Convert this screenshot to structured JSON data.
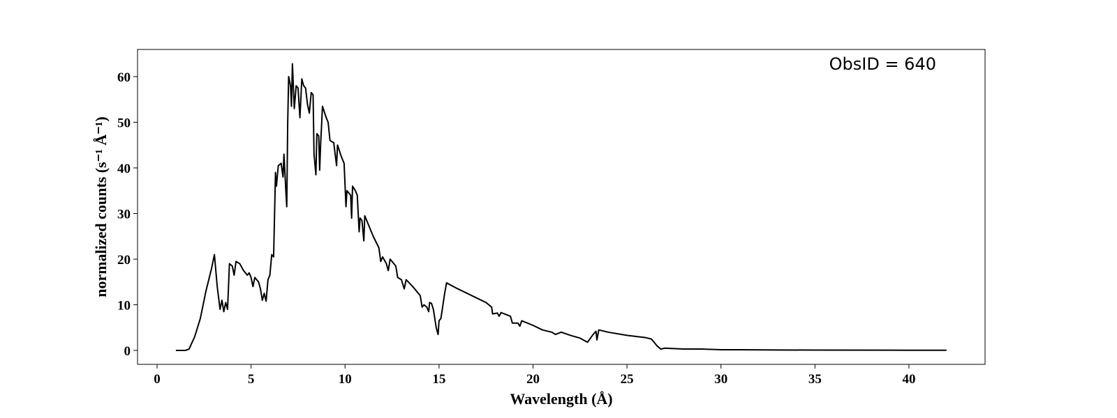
{
  "chart_data": {
    "type": "line",
    "xlabel": "Wavelength (Å)",
    "ylabel": "normalized counts (s⁻¹ Å⁻¹)",
    "annotation": "ObsID = 640",
    "xlim": [
      -1.04,
      44.05
    ],
    "ylim": [
      -3.05,
      65.95
    ],
    "xticks": [
      0,
      5,
      10,
      15,
      20,
      25,
      30,
      35,
      40
    ],
    "yticks": [
      0,
      10,
      20,
      30,
      40,
      50,
      60
    ],
    "x": [
      1.0,
      1.5,
      1.7,
      2.0,
      2.3,
      2.6,
      2.9,
      3.05,
      3.2,
      3.35,
      3.45,
      3.55,
      3.65,
      3.75,
      3.85,
      4.0,
      4.1,
      4.2,
      4.4,
      4.6,
      4.8,
      4.9,
      5.0,
      5.1,
      5.2,
      5.4,
      5.5,
      5.6,
      5.7,
      5.8,
      5.9,
      6.0,
      6.1,
      6.2,
      6.3,
      6.35,
      6.45,
      6.6,
      6.7,
      6.75,
      6.85,
      6.9,
      6.95,
      7.0,
      7.1,
      7.15,
      7.2,
      7.3,
      7.4,
      7.5,
      7.6,
      7.7,
      7.8,
      7.9,
      8.0,
      8.1,
      8.2,
      8.3,
      8.35,
      8.45,
      8.5,
      8.6,
      8.65,
      8.7,
      8.8,
      9.0,
      9.1,
      9.2,
      9.4,
      9.55,
      9.6,
      9.8,
      9.95,
      10.05,
      10.1,
      10.3,
      10.35,
      10.4,
      10.55,
      10.65,
      10.75,
      10.8,
      10.9,
      11.0,
      11.05,
      11.2,
      11.5,
      11.8,
      11.9,
      12.0,
      12.2,
      12.3,
      12.4,
      12.7,
      12.8,
      13.0,
      13.15,
      13.25,
      13.6,
      14.0,
      14.1,
      14.2,
      14.35,
      14.45,
      14.5,
      14.6,
      14.7,
      14.85,
      14.95,
      15.0,
      15.1,
      15.3,
      15.4,
      16.0,
      17.0,
      17.5,
      17.8,
      17.85,
      18.1,
      18.2,
      18.3,
      18.8,
      18.9,
      19.2,
      19.3,
      19.4,
      20.0,
      20.5,
      21.0,
      21.2,
      21.5,
      22.0,
      22.5,
      22.9,
      23.2,
      23.35,
      23.4,
      23.5,
      24.0,
      25.0,
      26.0,
      26.3,
      26.6,
      26.8,
      27.0,
      27.5,
      28,
      29,
      30,
      31,
      33,
      35,
      40,
      42
    ],
    "series": [
      {
        "color": "#000000",
        "values": [
          0,
          0,
          0.3,
          3,
          7,
          13,
          18,
          21,
          14,
          9,
          11,
          8.5,
          10.5,
          9,
          19,
          18.5,
          16.5,
          19.5,
          19,
          17.5,
          16.5,
          17,
          16,
          14,
          16,
          15,
          13.5,
          11,
          12.5,
          10.8,
          15.5,
          16.5,
          21,
          20.5,
          39,
          36,
          40.5,
          41,
          38,
          43,
          35,
          31.5,
          50,
          60,
          58,
          53.5,
          62.8,
          53,
          58,
          57.5,
          51,
          59.5,
          58,
          57.5,
          54,
          52,
          56.5,
          56,
          43,
          38.5,
          47.5,
          47,
          39.5,
          45,
          53.5,
          51,
          50,
          46,
          45.5,
          40.5,
          45,
          42.5,
          41,
          31.5,
          35,
          34,
          29,
          36,
          35,
          34,
          26,
          29,
          28.5,
          24,
          29.5,
          28,
          25,
          22.5,
          19.5,
          20.5,
          19,
          17.5,
          20,
          18.5,
          16,
          15.5,
          13.5,
          15.5,
          14,
          12,
          9.5,
          10,
          9.5,
          8.5,
          10.5,
          10.3,
          9,
          5,
          3.5,
          6.5,
          7,
          12.5,
          14.8,
          13.5,
          11.5,
          10.5,
          9.5,
          8,
          8.2,
          7.5,
          8.3,
          7.5,
          6,
          6,
          5.3,
          6.5,
          5.5,
          4.5,
          4,
          3.5,
          4,
          3.3,
          2.7,
          1.8,
          3.5,
          4.2,
          2.3,
          4.5,
          4,
          3.3,
          2.8,
          2.5,
          1,
          0.3,
          0.5,
          0.4,
          0.3,
          0.3,
          0.15,
          0.15,
          0.1,
          0.08,
          0.05,
          0.05
        ]
      }
    ]
  }
}
